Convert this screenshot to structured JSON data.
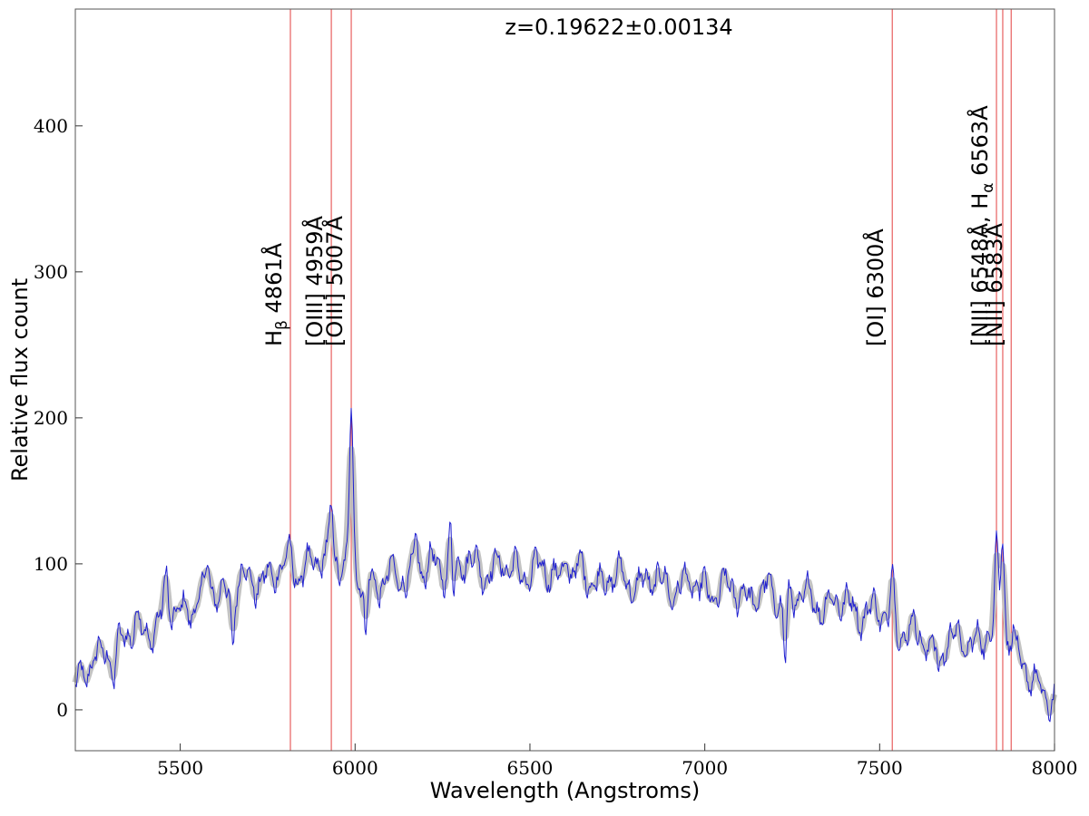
{
  "chart_data": {
    "type": "line",
    "title": "",
    "annotation": "z=0.19622±0.00134",
    "xlabel": "Wavelength (Angstroms)",
    "ylabel": "Relative flux count",
    "xlim": [
      5200,
      8000
    ],
    "ylim": [
      -28,
      480
    ],
    "xticks": [
      5500,
      6000,
      6500,
      7000,
      7500,
      8000
    ],
    "yticks": [
      0,
      100,
      200,
      300,
      400
    ],
    "xtick_labels": [
      "5500",
      "6000",
      "6500",
      "7000",
      "7500",
      "8000"
    ],
    "ytick_labels": [
      "0",
      "100",
      "200",
      "300",
      "400"
    ],
    "grid": false,
    "colors": {
      "spectrum": "#1f1fd0",
      "smoothed": "#bdbdbd",
      "line_marker": "#e34040"
    },
    "emission_lines": [
      {
        "label": "H",
        "sub": "β",
        "rest": " 4861Å",
        "observed": 5815
      },
      {
        "label": "[OIII] 4959Å",
        "sub": "",
        "rest": "",
        "observed": 5932
      },
      {
        "label": "[OIII] 5007Å",
        "sub": "",
        "rest": "",
        "observed": 5989
      },
      {
        "label": "[OI] 6300Å",
        "sub": "",
        "rest": "",
        "observed": 7536
      },
      {
        "label": "[NII] 6548Å, H",
        "sub": "α",
        "rest": " 6563Å",
        "observed": 7834
      },
      {
        "label": "",
        "sub": "",
        "rest": "",
        "observed": 7852
      },
      {
        "label": "[NII] 6583Å",
        "sub": "",
        "rest": "",
        "observed": 7876
      }
    ],
    "continuum_x": [
      5200,
      5250,
      5300,
      5350,
      5400,
      5450,
      5500,
      5550,
      5600,
      5650,
      5700,
      5750,
      5800,
      5850,
      5900,
      5950,
      6000,
      6100,
      6200,
      6300,
      6400,
      6500,
      6600,
      6700,
      6800,
      6900,
      7000,
      7100,
      7200,
      7300,
      7400,
      7500,
      7550,
      7600,
      7650,
      7700,
      7750,
      7800,
      7850,
      7880,
      7900,
      7950,
      8000
    ],
    "continuum_y": [
      20,
      30,
      40,
      50,
      55,
      62,
      68,
      75,
      80,
      85,
      88,
      92,
      95,
      97,
      100,
      105,
      90,
      88,
      95,
      100,
      97,
      95,
      93,
      90,
      88,
      86,
      83,
      80,
      78,
      75,
      72,
      65,
      58,
      50,
      45,
      45,
      48,
      48,
      55,
      45,
      30,
      15,
      10
    ],
    "peaks": [
      {
        "x": 5290,
        "y": 45
      },
      {
        "x": 5375,
        "y": 60
      },
      {
        "x": 5460,
        "y": 88
      },
      {
        "x": 5580,
        "y": 98
      },
      {
        "x": 5815,
        "y": 110
      },
      {
        "x": 5932,
        "y": 142
      },
      {
        "x": 5989,
        "y": 205
      },
      {
        "x": 6175,
        "y": 125
      },
      {
        "x": 6275,
        "y": 142
      },
      {
        "x": 6605,
        "y": 112
      },
      {
        "x": 7536,
        "y": 94
      },
      {
        "x": 7834,
        "y": 108
      },
      {
        "x": 7852,
        "y": 126
      },
      {
        "x": 7880,
        "y": 60
      }
    ],
    "dips": [
      {
        "x": 5310,
        "y": 25
      },
      {
        "x": 5650,
        "y": 44
      },
      {
        "x": 6030,
        "y": 45
      },
      {
        "x": 6280,
        "y": 55
      },
      {
        "x": 7230,
        "y": 36
      },
      {
        "x": 7670,
        "y": 25
      }
    ]
  }
}
